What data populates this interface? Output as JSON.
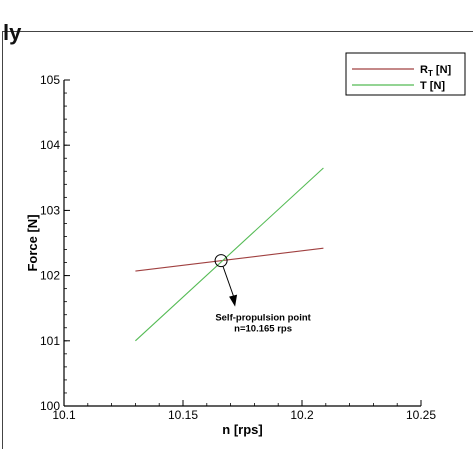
{
  "page_fragment_text": "ly",
  "chart_data": {
    "type": "line",
    "title": "",
    "xlabel": "n [rps]",
    "ylabel": "Force [N]",
    "xlim": [
      10.1,
      10.25
    ],
    "ylim": [
      100,
      105
    ],
    "xticks": [
      "10.1",
      "10.15",
      "10.2",
      "10.25"
    ],
    "yticks": [
      "100",
      "101",
      "102",
      "103",
      "104",
      "105"
    ],
    "grid": false,
    "legend": {
      "position": "top-right"
    },
    "series": [
      {
        "name_main": "R",
        "name_sub": "T",
        "name_unit": " [N]",
        "color": "#a04040",
        "x": [
          10.13,
          10.209
        ],
        "y": [
          102.07,
          102.42
        ]
      },
      {
        "name": "T [N]",
        "color": "#55bb55",
        "x": [
          10.13,
          10.209
        ],
        "y": [
          101.0,
          103.65
        ]
      }
    ],
    "annotation": {
      "line1": "Self-propulsion point",
      "line2": "n=10.165 rps",
      "x": 10.166,
      "y": 102.23
    }
  }
}
